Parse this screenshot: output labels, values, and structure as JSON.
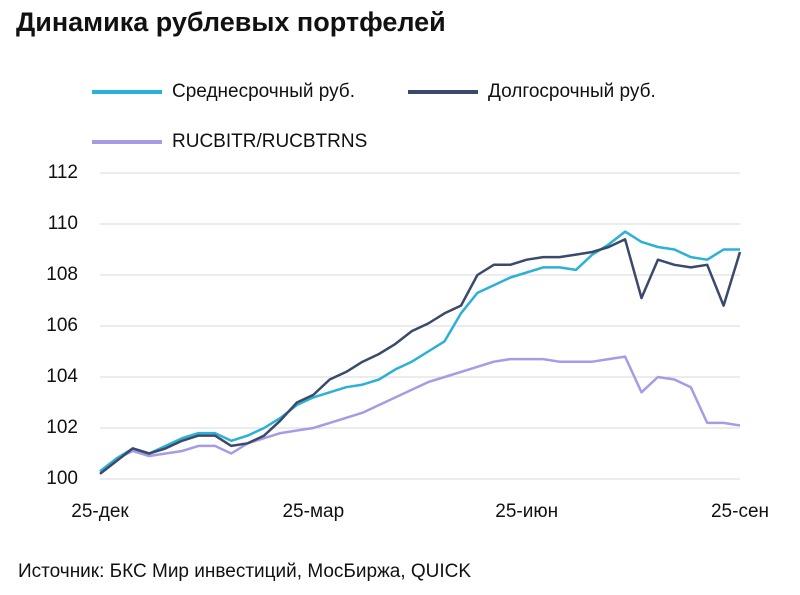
{
  "chart_data": {
    "type": "line",
    "title": "Динамика рублевых портфелей",
    "source": "Источник: БКС Мир инвестиций, МосБиржа, QUICK",
    "categories": [
      "25-дек",
      null,
      null,
      null,
      null,
      null,
      null,
      null,
      null,
      null,
      null,
      null,
      null,
      "25-мар",
      null,
      null,
      null,
      null,
      null,
      null,
      null,
      null,
      null,
      null,
      null,
      null,
      "25-июн",
      null,
      null,
      null,
      null,
      null,
      null,
      null,
      null,
      null,
      null,
      null,
      null,
      "25-сен"
    ],
    "series": [
      {
        "name": "Среднесрочный руб.",
        "color": "#2bb0d8",
        "values": [
          100.3,
          100.8,
          101.2,
          101.0,
          101.3,
          101.6,
          101.8,
          101.8,
          101.5,
          101.7,
          102.0,
          102.4,
          102.9,
          103.2,
          103.4,
          103.6,
          103.7,
          103.9,
          104.3,
          104.6,
          105.0,
          105.4,
          106.5,
          107.3,
          107.6,
          107.9,
          108.1,
          108.3,
          108.3,
          108.2,
          108.8,
          109.2,
          109.7,
          109.3,
          109.1,
          109.0,
          108.7,
          108.6,
          109.0,
          109.0
        ]
      },
      {
        "name": "Долгосрочный руб.",
        "color": "#3b4a6b",
        "values": [
          100.2,
          100.7,
          101.2,
          101.0,
          101.2,
          101.5,
          101.7,
          101.7,
          101.3,
          101.4,
          101.7,
          102.3,
          103.0,
          103.3,
          103.9,
          104.2,
          104.6,
          104.9,
          105.3,
          105.8,
          106.1,
          106.5,
          106.8,
          108.0,
          108.4,
          108.4,
          108.6,
          108.7,
          108.7,
          108.8,
          108.9,
          109.1,
          109.4,
          107.1,
          108.6,
          108.4,
          108.3,
          108.4,
          106.8,
          108.9
        ]
      },
      {
        "name": "RUCBITR/RUCBTRNS",
        "color": "#a79be6",
        "values": [
          100.3,
          100.8,
          101.1,
          100.9,
          101.0,
          101.1,
          101.3,
          101.3,
          101.0,
          101.4,
          101.6,
          101.8,
          101.9,
          102.0,
          102.2,
          102.4,
          102.6,
          102.9,
          103.2,
          103.5,
          103.8,
          104.0,
          104.2,
          104.4,
          104.6,
          104.7,
          104.7,
          104.7,
          104.6,
          104.6,
          104.6,
          104.7,
          104.8,
          103.4,
          104.0,
          103.9,
          103.6,
          102.2,
          102.2,
          102.1
        ]
      }
    ],
    "ylim": [
      100,
      112
    ],
    "yticks": [
      100,
      102,
      104,
      106,
      108,
      110,
      112
    ],
    "grid": true
  }
}
